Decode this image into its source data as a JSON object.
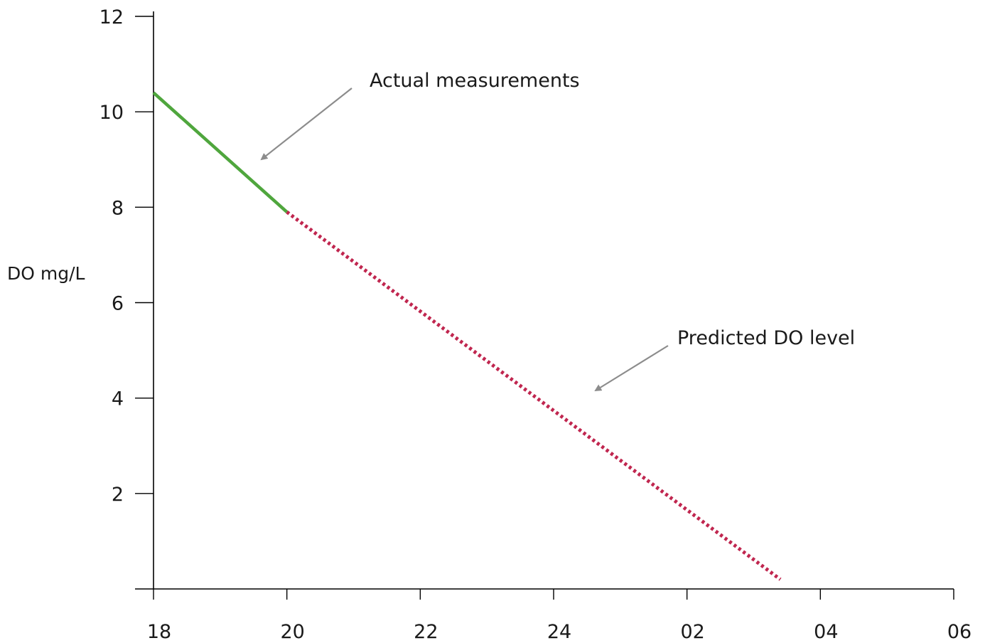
{
  "chart_data": {
    "type": "line",
    "title": "",
    "ylabel": "DO mg/L",
    "xlabel": "",
    "x_ticks": [
      {
        "hours": 0,
        "label": "18"
      },
      {
        "hours": 2,
        "label": "20"
      },
      {
        "hours": 4,
        "label": "22"
      },
      {
        "hours": 6,
        "label": "24"
      },
      {
        "hours": 8,
        "label": "02"
      },
      {
        "hours": 10,
        "label": "04"
      },
      {
        "hours": 12,
        "label": "06"
      }
    ],
    "y_ticks": [
      2,
      4,
      6,
      8,
      10,
      12
    ],
    "ylim": [
      0,
      12
    ],
    "grid": false,
    "series": [
      {
        "name": "Actual measurements",
        "style": "solid",
        "color": "#4fa63d",
        "points": [
          {
            "hours": 0,
            "label": "18:00",
            "y": 10.4
          },
          {
            "hours": 2,
            "label": "20:00",
            "y": 7.9
          }
        ]
      },
      {
        "name": "Predicted DO level",
        "style": "dotted",
        "color": "#c0264f",
        "points": [
          {
            "hours": 2,
            "label": "20:00",
            "y": 7.9
          },
          {
            "hours": 9.4,
            "label": "03:24",
            "y": 0.2
          }
        ]
      }
    ],
    "annotations": [
      {
        "text": "Actual measurements",
        "series": 0
      },
      {
        "text": "Predicted DO level",
        "series": 1
      }
    ]
  },
  "colors": {
    "arrow": "#8c8c8c",
    "axis": "#000000"
  }
}
